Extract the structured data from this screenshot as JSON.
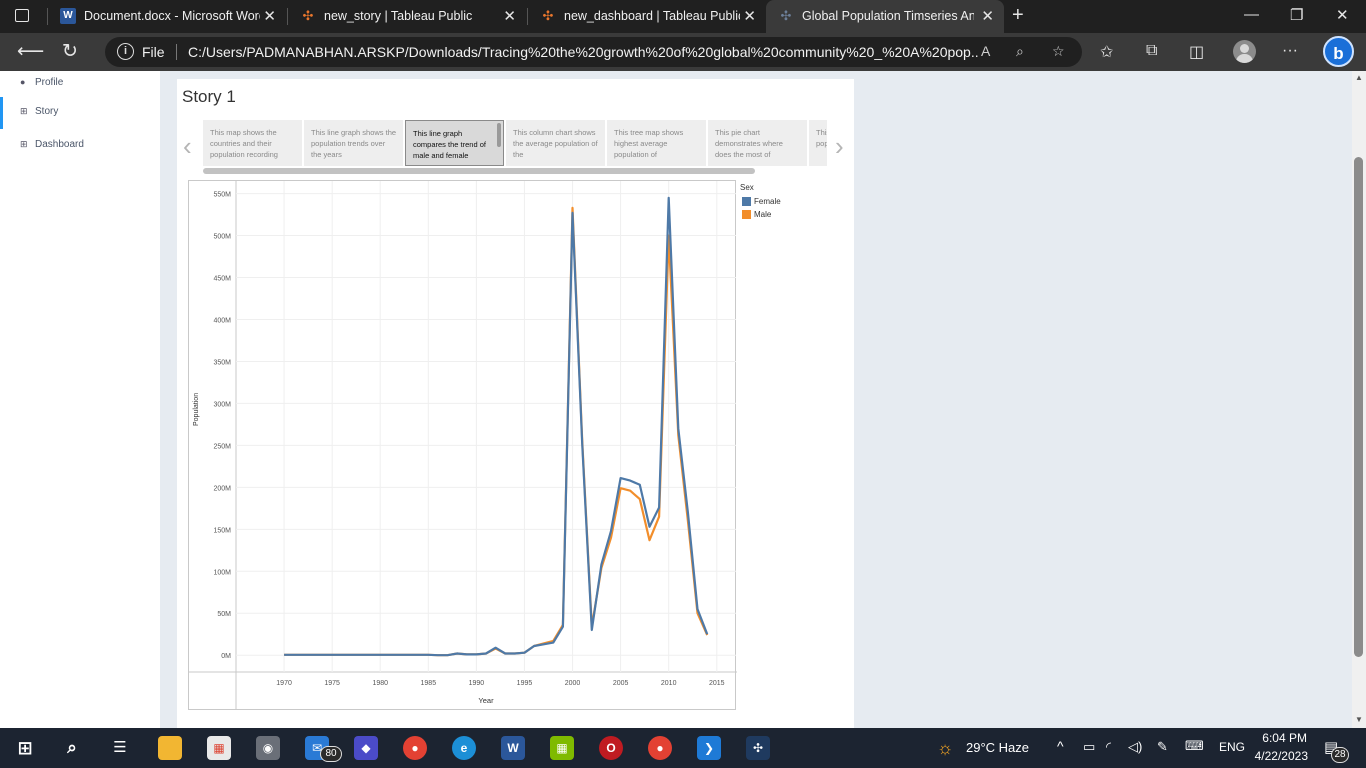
{
  "browser": {
    "tabs": [
      {
        "title": "Document.docx - Microsoft Word",
        "icon": "word-icon",
        "color": "#2b579a"
      },
      {
        "title": "new_story | Tableau Public",
        "icon": "tableau-icon",
        "color": "#e8762d"
      },
      {
        "title": "new_dashboard | Tableau Public",
        "icon": "tableau-icon",
        "color": "#e8762d"
      },
      {
        "title": "Global Population Timseries Analysis",
        "icon": "tableau-icon",
        "color": "#1f3a5f"
      }
    ],
    "address_label": "File",
    "url": "C:/Users/PADMANABHAN.ARSKP/Downloads/Tracing%20the%20growth%20of%20global%20community%20_%20A%20pop..."
  },
  "sidebar": {
    "items": [
      {
        "label": "Profile",
        "icon": "person-icon"
      },
      {
        "label": "Story",
        "icon": "grid-icon"
      },
      {
        "label": "Dashboard",
        "icon": "grid-icon"
      }
    ]
  },
  "story": {
    "title": "Story 1",
    "points": [
      {
        "text": "This map shows the countries and their population recording"
      },
      {
        "text": "This line graph shows the population trends over the years"
      },
      {
        "text": "This line graph compares the trend of male and female"
      },
      {
        "text": "This column chart shows the average population of the"
      },
      {
        "text": "This tree map shows highest average population of"
      },
      {
        "text": "This pie chart demonstrates where does the most of"
      },
      {
        "text": "This donut chart depicts population"
      }
    ],
    "active_point": 2
  },
  "chart_data": {
    "type": "line",
    "title": "",
    "xlabel": "Year",
    "ylabel": "Population",
    "xlim": [
      1965,
      2017
    ],
    "ylim": [
      -20,
      565
    ],
    "x_ticks": [
      1970,
      1975,
      1980,
      1985,
      1990,
      1995,
      2000,
      2005,
      2010,
      2015
    ],
    "y_ticks": [
      0,
      50,
      100,
      150,
      200,
      250,
      300,
      350,
      400,
      450,
      500,
      550
    ],
    "y_tick_labels": [
      "0M",
      "50M",
      "100M",
      "150M",
      "200M",
      "250M",
      "300M",
      "350M",
      "400M",
      "450M",
      "500M",
      "550M"
    ],
    "y_units": "M",
    "legend_title": "Sex",
    "legend_position": "right",
    "grid": true,
    "series": [
      {
        "name": "Female",
        "color": "#4e79a7",
        "x": [
          1970,
          1971,
          1972,
          1973,
          1974,
          1975,
          1976,
          1977,
          1978,
          1979,
          1980,
          1981,
          1982,
          1983,
          1984,
          1985,
          1986,
          1987,
          1988,
          1989,
          1990,
          1991,
          1992,
          1993,
          1994,
          1995,
          1996,
          1997,
          1998,
          1999,
          2000,
          2001,
          2002,
          2003,
          2004,
          2005,
          2006,
          2007,
          2008,
          2009,
          2010,
          2011,
          2012,
          2013,
          2014
        ],
        "values": [
          0.5,
          0.5,
          0.5,
          0.5,
          0.5,
          0.5,
          0.5,
          0.5,
          0.5,
          0.5,
          0.5,
          0.5,
          0.5,
          0.5,
          0.5,
          0.5,
          0,
          0,
          2,
          1,
          1,
          2,
          9,
          2,
          2,
          3,
          11,
          13,
          15,
          34,
          527,
          252,
          30,
          108,
          148,
          211,
          208,
          203,
          153,
          176,
          545,
          270,
          170,
          55,
          25
        ]
      },
      {
        "name": "Male",
        "color": "#f28e2b",
        "x": [
          1970,
          1971,
          1972,
          1973,
          1974,
          1975,
          1976,
          1977,
          1978,
          1979,
          1980,
          1981,
          1982,
          1983,
          1984,
          1985,
          1986,
          1987,
          1988,
          1989,
          1990,
          1991,
          1992,
          1993,
          1994,
          1995,
          1996,
          1997,
          1998,
          1999,
          2000,
          2001,
          2002,
          2003,
          2004,
          2005,
          2006,
          2007,
          2008,
          2009,
          2010,
          2011,
          2012,
          2013,
          2014
        ],
        "values": [
          0.5,
          0.5,
          0.5,
          0.5,
          0.5,
          0.5,
          0.5,
          0.5,
          0.5,
          0.5,
          0.5,
          0.5,
          0.5,
          0.5,
          0.5,
          0.5,
          0,
          0,
          2,
          1,
          1,
          2,
          8,
          2,
          2,
          3,
          11,
          14,
          17,
          36,
          533,
          256,
          34,
          104,
          140,
          199,
          196,
          186,
          137,
          165,
          500,
          262,
          160,
          50,
          24
        ]
      }
    ]
  },
  "taskbar": {
    "mail_badge": "80",
    "weather": "29°C  Haze",
    "language": "ENG",
    "time": "6:04 PM",
    "date": "4/22/2023",
    "notification_count": "28"
  }
}
